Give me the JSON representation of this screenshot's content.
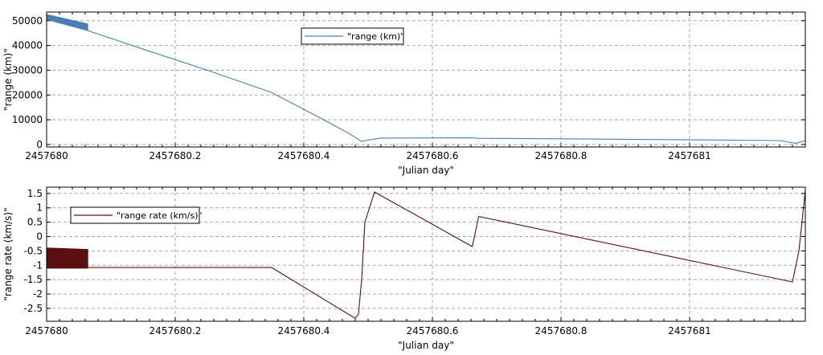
{
  "chart_data": [
    {
      "type": "line",
      "xlabel": "\"Julian day\"",
      "ylabel": "\"range (km)\"",
      "xlim": [
        2457680,
        2457681.18
      ],
      "ylim": [
        -1000,
        53500
      ],
      "x_ticks": [
        "2457680",
        "2457680.2",
        "2457680.4",
        "2457680.6",
        "2457680.8",
        "2457681"
      ],
      "y_ticks": [
        "0",
        "10000",
        "20000",
        "30000",
        "40000",
        "50000"
      ],
      "y_tick_values": [
        0,
        10000,
        20000,
        30000,
        40000,
        50000
      ],
      "grid": true,
      "legend_position": "top-center",
      "series": [
        {
          "name": "\"range (km)\"",
          "color": "#4a7fb5",
          "band": {
            "x": [
              2457680,
              2457680.064
            ],
            "upper": [
              52500,
              48700
            ],
            "lower": [
              50500,
              46000
            ]
          },
          "x": [
            2457680.064,
            2457680.15,
            2457680.25,
            2457680.35,
            2457680.42,
            2457680.47,
            2457680.49,
            2457680.5,
            2457680.52,
            2457680.6,
            2457680.66,
            2457680.67,
            2457680.8,
            2457680.9,
            2457681.0,
            2457681.14,
            2457681.165,
            2457681.175,
            2457681.18
          ],
          "y": [
            46000,
            38500,
            30000,
            21000,
            11500,
            4500,
            1200,
            1800,
            2600,
            2650,
            2700,
            2500,
            2300,
            2100,
            1900,
            1600,
            500,
            1200,
            1500
          ]
        }
      ]
    },
    {
      "type": "line",
      "xlabel": "\"Julian day\"",
      "ylabel": "\"range rate (km/s)\"",
      "xlim": [
        2457680,
        2457681.18
      ],
      "ylim": [
        -2.95,
        1.72
      ],
      "x_ticks": [
        "2457680",
        "2457680.2",
        "2457680.4",
        "2457680.6",
        "2457680.8",
        "2457681"
      ],
      "y_ticks": [
        "1.5",
        "1",
        "0.5",
        "0",
        "-0.5",
        "-1",
        "-1.5",
        "-2",
        "-2.5"
      ],
      "y_tick_values": [
        1.5,
        1,
        0.5,
        0,
        -0.5,
        -1,
        -1.5,
        -2,
        -2.5
      ],
      "grid": true,
      "legend_position": "top-left",
      "series": [
        {
          "name": "\"range rate (km/s)\"",
          "color": "#5a1010",
          "band": {
            "x": [
              2457680,
              2457680.064
            ],
            "upper": [
              -0.4,
              -0.45
            ],
            "lower": [
              -1.1,
              -1.1
            ]
          },
          "x": [
            2457680.064,
            2457680.35,
            2457680.48,
            2457680.485,
            2457680.49,
            2457680.495,
            2457680.51,
            2457680.662,
            2457680.672,
            2457681.16,
            2457681.17,
            2457681.18
          ],
          "y": [
            -1.08,
            -1.08,
            -2.85,
            -2.7,
            -1.5,
            0.5,
            1.55,
            -0.35,
            0.7,
            -1.58,
            -0.5,
            1.6
          ]
        }
      ]
    }
  ]
}
